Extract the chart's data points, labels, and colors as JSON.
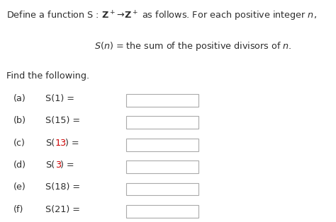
{
  "bg_color": "#ffffff",
  "text_color": "#2d2d2d",
  "red_color": "#cc0000",
  "figsize": [
    4.74,
    3.14
  ],
  "dpi": 100,
  "items": [
    {
      "label": "(a)",
      "pre": "S(1) =",
      "red": "",
      "post": ""
    },
    {
      "label": "(b)",
      "pre": "S(15) =",
      "red": "",
      "post": ""
    },
    {
      "label": "(c)",
      "pre": "S(",
      "red": "13",
      "post": ") ="
    },
    {
      "label": "(d)",
      "pre": "S(",
      "red": "3",
      "post": ") ="
    },
    {
      "label": "(e)",
      "pre": "S(18) =",
      "red": "",
      "post": ""
    },
    {
      "label": "(f)",
      "pre": "S(21) =",
      "red": "",
      "post": ""
    }
  ]
}
